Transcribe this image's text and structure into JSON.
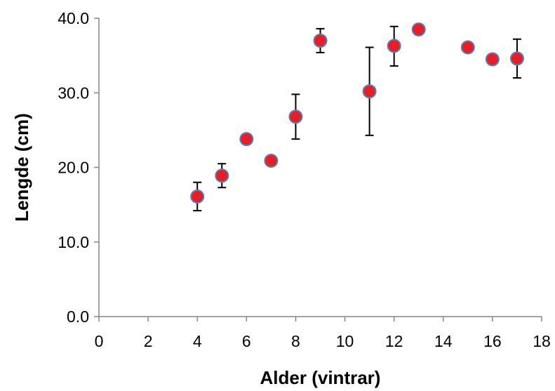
{
  "chart_data": {
    "type": "scatter",
    "title": "",
    "xlabel": "Alder (vintrar)",
    "ylabel": "Lengde (cm)",
    "xlim": [
      0,
      18
    ],
    "ylim": [
      0,
      40
    ],
    "x_ticks": [
      0,
      2,
      4,
      6,
      8,
      10,
      12,
      14,
      16,
      18
    ],
    "y_ticks": [
      0,
      10,
      20,
      30,
      40
    ],
    "x_tick_labels": [
      "0",
      "2",
      "4",
      "6",
      "8",
      "10",
      "12",
      "14",
      "16",
      "18"
    ],
    "y_tick_labels": [
      "0.0",
      "10.0",
      "20.0",
      "30.0",
      "40.0"
    ],
    "grid": false,
    "legend": "none",
    "marker_color": "#ed1c24",
    "marker_edge_color": "#4f81bd",
    "error_bar_color": "#000000",
    "series": [
      {
        "points": [
          {
            "x": 4,
            "y": 16.1,
            "yerr_low": 14.2,
            "yerr_high": 18.0
          },
          {
            "x": 5,
            "y": 18.9,
            "yerr_low": 17.3,
            "yerr_high": 20.5
          },
          {
            "x": 6,
            "y": 23.8
          },
          {
            "x": 7,
            "y": 20.9
          },
          {
            "x": 8,
            "y": 26.8,
            "yerr_low": 23.8,
            "yerr_high": 29.8
          },
          {
            "x": 9,
            "y": 37.0,
            "yerr_low": 35.4,
            "yerr_high": 38.6
          },
          {
            "x": 11,
            "y": 30.2,
            "yerr_low": 24.3,
            "yerr_high": 36.1
          },
          {
            "x": 12,
            "y": 36.3,
            "yerr_low": 33.6,
            "yerr_high": 38.9
          },
          {
            "x": 13,
            "y": 38.5
          },
          {
            "x": 15,
            "y": 36.1
          },
          {
            "x": 16,
            "y": 34.5
          },
          {
            "x": 17,
            "y": 34.6,
            "yerr_low": 32.0,
            "yerr_high": 37.2
          }
        ]
      }
    ]
  }
}
